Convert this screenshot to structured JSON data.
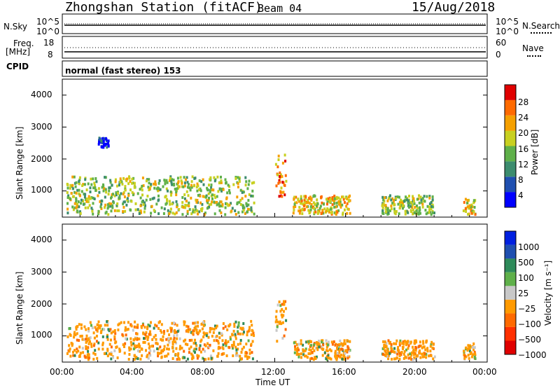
{
  "header": {
    "station": "Zhongshan Station (fitACF)",
    "beam": "Beam 04",
    "date": "15/Aug/2018"
  },
  "noise_panel": {
    "left_label": "N.Sky",
    "left_ticks": [
      "10^5",
      "10^0"
    ],
    "right_ticks": [
      "10^5",
      "10^0"
    ],
    "right_label": "N.Search"
  },
  "freq_panel": {
    "left_label_1": "Freq.",
    "left_label_2": "[MHz]",
    "left_ticks": [
      "18",
      "8"
    ],
    "right_ticks": [
      "60",
      "0"
    ],
    "right_label": "Nave"
  },
  "cpid": {
    "label": "CPID",
    "text": "normal (fast stereo) 153"
  },
  "power_panel": {
    "ylabel": "Slant Range [km]",
    "yticks": [
      "4000",
      "3000",
      "2000",
      "1000"
    ],
    "colorbar_label": "Power [dB]",
    "colorbar_ticks": [
      "28",
      "24",
      "20",
      "16",
      "12",
      "8",
      "4"
    ],
    "colors": [
      "#0000ff",
      "#1f4fb0",
      "#3c8c6e",
      "#5fb04a",
      "#c8d020",
      "#f5a000",
      "#ff6a00",
      "#e00000"
    ]
  },
  "velocity_panel": {
    "ylabel": "Slant Range [km]",
    "yticks": [
      "4000",
      "3000",
      "2000",
      "1000"
    ],
    "colorbar_label": "Velocity [m s⁻¹]",
    "colorbar_ticks": [
      "1000",
      "500",
      "100",
      "25",
      "−25",
      "−100",
      "−500",
      "−1000"
    ],
    "colors": [
      "#e00000",
      "#ff3000",
      "#ff6a00",
      "#ff9a00",
      "#c8c8c8",
      "#5fb04a",
      "#2e8a5a",
      "#1f4fb0",
      "#0020e0"
    ]
  },
  "xaxis": {
    "ticks": [
      "00:00",
      "04:00",
      "08:00",
      "12:00",
      "16:00",
      "20:00",
      "00:00"
    ],
    "label": "Time UT"
  },
  "chart_data": [
    {
      "type": "heatmap",
      "title": "Zhongshan Station (fitACF) Beam 04 15/Aug/2018",
      "xlabel": "Time UT",
      "ylabel": "Slant Range [km]",
      "colorbar": "Power [dB]",
      "xlim": [
        "00:00",
        "00:00"
      ],
      "ylim": [
        180,
        4500
      ],
      "regions": [
        {
          "t_start": 0.2,
          "t_end": 10.8,
          "range_min": 300,
          "range_max": 1500,
          "power_db": 20
        },
        {
          "t_start": 2.0,
          "t_end": 2.6,
          "range_min": 2400,
          "range_max": 2700,
          "power_db": 8
        },
        {
          "t_start": 12.0,
          "t_end": 12.6,
          "range_min": 800,
          "range_max": 2200,
          "power_db": 26
        },
        {
          "t_start": 13.0,
          "t_end": 16.2,
          "range_min": 300,
          "range_max": 900,
          "power_db": 22
        },
        {
          "t_start": 18.0,
          "t_end": 21.0,
          "range_min": 300,
          "range_max": 900,
          "power_db": 20
        },
        {
          "t_start": 22.6,
          "t_end": 23.3,
          "range_min": 300,
          "range_max": 800,
          "power_db": 24
        }
      ]
    },
    {
      "type": "heatmap",
      "xlabel": "Time UT",
      "ylabel": "Slant Range [km]",
      "colorbar": "Velocity [m s⁻¹]",
      "xlim": [
        "00:00",
        "00:00"
      ],
      "ylim": [
        180,
        4500
      ],
      "regions": [
        {
          "t_start": 0.2,
          "t_end": 10.8,
          "range_min": 300,
          "range_max": 1500,
          "velocity": -150
        },
        {
          "t_start": 12.0,
          "t_end": 12.6,
          "range_min": 800,
          "range_max": 2200,
          "velocity": -200
        },
        {
          "t_start": 13.0,
          "t_end": 16.2,
          "range_min": 300,
          "range_max": 900,
          "velocity": -100
        },
        {
          "t_start": 18.0,
          "t_end": 21.0,
          "range_min": 300,
          "range_max": 900,
          "velocity": -80
        },
        {
          "t_start": 22.6,
          "t_end": 23.3,
          "range_min": 300,
          "range_max": 800,
          "velocity": -120
        }
      ]
    }
  ]
}
